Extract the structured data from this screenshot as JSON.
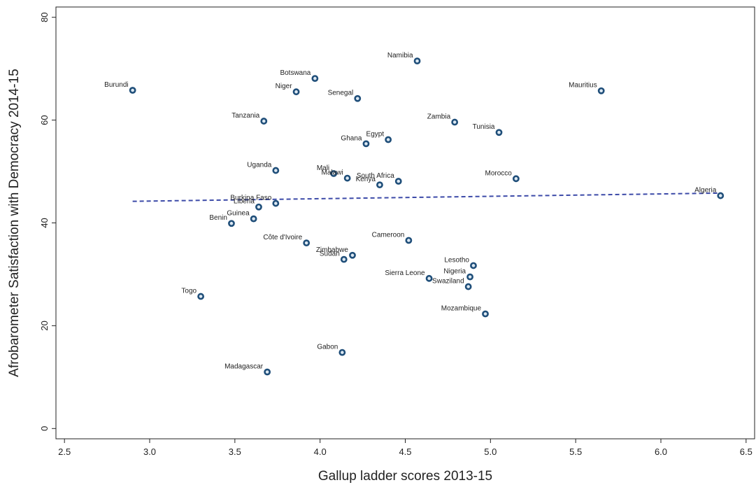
{
  "chart_data": {
    "type": "scatter",
    "title": "",
    "xlabel": "Gallup ladder scores 2013-15",
    "ylabel": "Afrobarometer Satisfaction with Democracy 2014-15",
    "xlim": [
      2.45,
      6.55
    ],
    "ylim": [
      -2,
      82
    ],
    "xticks": [
      2.5,
      3.0,
      3.5,
      4.0,
      4.5,
      5.0,
      5.5,
      6.0,
      6.5
    ],
    "xtick_labels": [
      "2.5",
      "3.0",
      "3.5",
      "4.0",
      "4.5",
      "5.0",
      "5.5",
      "6.0",
      "6.5"
    ],
    "yticks": [
      0,
      20,
      40,
      60,
      80
    ],
    "ytick_labels": [
      "0",
      "20",
      "40",
      "60",
      "80"
    ],
    "grid": false,
    "marker_color": "#1f4e79",
    "marker_fill": "#dce8f2",
    "trend_color": "#3c4aa8",
    "trend_line": {
      "x": [
        2.9,
        6.35
      ],
      "y": [
        44.2,
        45.8
      ],
      "style": "dashed"
    },
    "points": [
      {
        "label": "Burundi",
        "x": 2.9,
        "y": 65.8
      },
      {
        "label": "Togo",
        "x": 3.3,
        "y": 25.7
      },
      {
        "label": "Benin",
        "x": 3.48,
        "y": 39.9
      },
      {
        "label": "Guinea",
        "x": 3.61,
        "y": 40.8
      },
      {
        "label": "Liberia",
        "x": 3.64,
        "y": 43.1
      },
      {
        "label": "Burkina Faso",
        "x": 3.74,
        "y": 43.8
      },
      {
        "label": "Tanzania",
        "x": 3.67,
        "y": 59.8
      },
      {
        "label": "Madagascar",
        "x": 3.69,
        "y": 11.0
      },
      {
        "label": "Uganda",
        "x": 3.74,
        "y": 50.2
      },
      {
        "label": "Niger",
        "x": 3.86,
        "y": 65.5
      },
      {
        "label": "Côte d'Ivoire",
        "x": 3.92,
        "y": 36.1
      },
      {
        "label": "Botswana",
        "x": 3.97,
        "y": 68.1
      },
      {
        "label": "Mali",
        "x": 4.08,
        "y": 49.6
      },
      {
        "label": "Gabon",
        "x": 4.13,
        "y": 14.8
      },
      {
        "label": "Sudan",
        "x": 4.14,
        "y": 32.9
      },
      {
        "label": "Malawi",
        "x": 4.16,
        "y": 48.7
      },
      {
        "label": "Zimbabwe",
        "x": 4.19,
        "y": 33.7
      },
      {
        "label": "Senegal",
        "x": 4.22,
        "y": 64.2
      },
      {
        "label": "Ghana",
        "x": 4.27,
        "y": 55.4
      },
      {
        "label": "Kenya",
        "x": 4.35,
        "y": 47.4
      },
      {
        "label": "Egypt",
        "x": 4.4,
        "y": 56.2
      },
      {
        "label": "South Africa",
        "x": 4.46,
        "y": 48.1
      },
      {
        "label": "Cameroon",
        "x": 4.52,
        "y": 36.6
      },
      {
        "label": "Namibia",
        "x": 4.57,
        "y": 71.5
      },
      {
        "label": "Sierra Leone",
        "x": 4.64,
        "y": 29.2
      },
      {
        "label": "Zambia",
        "x": 4.79,
        "y": 59.6
      },
      {
        "label": "Swaziland",
        "x": 4.87,
        "y": 27.6
      },
      {
        "label": "Nigeria",
        "x": 4.88,
        "y": 29.5
      },
      {
        "label": "Lesotho",
        "x": 4.9,
        "y": 31.7
      },
      {
        "label": "Mozambique",
        "x": 4.97,
        "y": 22.3
      },
      {
        "label": "Tunisia",
        "x": 5.05,
        "y": 57.6
      },
      {
        "label": "Morocco",
        "x": 5.15,
        "y": 48.6
      },
      {
        "label": "Mauritius",
        "x": 5.65,
        "y": 65.7
      },
      {
        "label": "Algeria",
        "x": 6.35,
        "y": 45.3
      }
    ]
  }
}
